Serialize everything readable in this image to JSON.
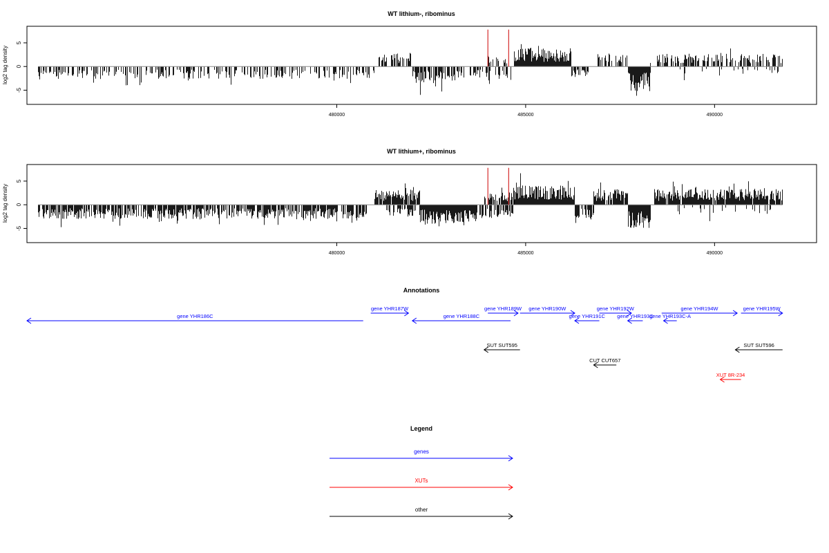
{
  "chart_data": [
    {
      "type": "bar",
      "title": "WT lithium-, ribominus",
      "ylabel": "log2 tag density",
      "xlim": [
        471800,
        492700
      ],
      "ylim": [
        -8,
        8.5
      ],
      "xticks": [
        480000,
        485000,
        490000
      ],
      "yticks": [
        -5,
        0,
        5
      ],
      "grid": false,
      "baseline": {
        "x_start": 472100,
        "x_end": 491800,
        "y": 0
      },
      "marker_lines": {
        "color": "#cc0000",
        "x": [
          484000,
          484550
        ],
        "y_top": 7.8
      },
      "density_segments": [
        {
          "x0": 472100,
          "x1": 481000,
          "sign": -1,
          "amp": 2.6,
          "density": 0.45,
          "seed": 11
        },
        {
          "x0": 481100,
          "x1": 482000,
          "sign": 1,
          "amp": 2.9,
          "density": 0.6,
          "seed": 12
        },
        {
          "x0": 482000,
          "x1": 483100,
          "sign": -1,
          "amp": 3.5,
          "density": 0.85,
          "seed": 13
        },
        {
          "x0": 483100,
          "x1": 484600,
          "sign": -1,
          "amp": 2.6,
          "density": 0.45,
          "seed": 14
        },
        {
          "x0": 484000,
          "x1": 484500,
          "sign": 1,
          "amp": 2.3,
          "density": 0.4,
          "seed": 15
        },
        {
          "x0": 484700,
          "x1": 486200,
          "sign": 1,
          "amp": 4.0,
          "density": 1.0,
          "seed": 16
        },
        {
          "x0": 486200,
          "x1": 486650,
          "sign": -1,
          "amp": 2.4,
          "density": 0.6,
          "seed": 17
        },
        {
          "x0": 486900,
          "x1": 487700,
          "sign": 1,
          "amp": 2.8,
          "density": 0.6,
          "seed": 18
        },
        {
          "x0": 487700,
          "x1": 488300,
          "sign": -1,
          "amp": 5.2,
          "density": 1.0,
          "seed": 19
        },
        {
          "x0": 488300,
          "x1": 488500,
          "sign": 1,
          "amp": 2.4,
          "density": 0.4,
          "seed": 20
        },
        {
          "x0": 488500,
          "x1": 491800,
          "sign": 1,
          "amp": 2.7,
          "density": 0.55,
          "seed": 21
        },
        {
          "x0": 489000,
          "x1": 491700,
          "sign": -1,
          "amp": 2.0,
          "density": 0.12,
          "seed": 22
        }
      ]
    },
    {
      "type": "bar",
      "title": "WT lithium+, ribominus",
      "ylabel": "log2 tag density",
      "xlim": [
        471800,
        492700
      ],
      "ylim": [
        -8,
        8.5
      ],
      "xticks": [
        480000,
        485000,
        490000
      ],
      "yticks": [
        -5,
        0,
        5
      ],
      "grid": false,
      "baseline": {
        "x_start": 472100,
        "x_end": 491800,
        "y": 0
      },
      "marker_lines": {
        "color": "#cc0000",
        "x": [
          484000,
          484550
        ],
        "y_top": 7.8
      },
      "density_segments": [
        {
          "x0": 472100,
          "x1": 480800,
          "sign": -1,
          "amp": 3.0,
          "density": 0.75,
          "seed": 31
        },
        {
          "x0": 481000,
          "x1": 482200,
          "sign": 1,
          "amp": 3.2,
          "density": 0.9,
          "seed": 32
        },
        {
          "x0": 481300,
          "x1": 482200,
          "sign": -1,
          "amp": 2.5,
          "density": 0.5,
          "seed": 33
        },
        {
          "x0": 482200,
          "x1": 483700,
          "sign": -1,
          "amp": 4.0,
          "density": 1.0,
          "seed": 34
        },
        {
          "x0": 483700,
          "x1": 484700,
          "sign": -1,
          "amp": 2.8,
          "density": 0.7,
          "seed": 35
        },
        {
          "x0": 483900,
          "x1": 484700,
          "sign": 1,
          "amp": 2.6,
          "density": 0.6,
          "seed": 36
        },
        {
          "x0": 484700,
          "x1": 486300,
          "sign": 1,
          "amp": 4.1,
          "density": 1.0,
          "seed": 37
        },
        {
          "x0": 486300,
          "x1": 486800,
          "sign": -1,
          "amp": 3.0,
          "density": 0.75,
          "seed": 38
        },
        {
          "x0": 486800,
          "x1": 487700,
          "sign": 1,
          "amp": 3.3,
          "density": 0.9,
          "seed": 39
        },
        {
          "x0": 487700,
          "x1": 488300,
          "sign": -1,
          "amp": 5.0,
          "density": 1.0,
          "seed": 40
        },
        {
          "x0": 488400,
          "x1": 491800,
          "sign": 1,
          "amp": 3.3,
          "density": 0.95,
          "seed": 41
        },
        {
          "x0": 489000,
          "x1": 491700,
          "sign": -1,
          "amp": 2.0,
          "density": 0.15,
          "seed": 42
        }
      ]
    },
    {
      "type": "diagram",
      "title": "Annotations",
      "xlim": [
        471800,
        492700
      ],
      "features": [
        {
          "label": "gene YHR186C",
          "category": "gene",
          "start": 471800,
          "end": 480700,
          "strand": "-",
          "row": 1
        },
        {
          "label": "gene YHR187W",
          "category": "gene",
          "start": 480900,
          "end": 481900,
          "strand": "+",
          "row": 0
        },
        {
          "label": "gene YHR188C",
          "category": "gene",
          "start": 482000,
          "end": 484600,
          "strand": "-",
          "row": 1
        },
        {
          "label": "gene YHR189W",
          "category": "gene",
          "start": 484000,
          "end": 484800,
          "strand": "+",
          "row": 0
        },
        {
          "label": "gene YHR190W",
          "category": "gene",
          "start": 484850,
          "end": 486300,
          "strand": "+",
          "row": 0
        },
        {
          "label": "gene YHR191C",
          "category": "gene",
          "start": 486300,
          "end": 486950,
          "strand": "-",
          "row": 1
        },
        {
          "label": "gene YHR192W",
          "category": "gene",
          "start": 486950,
          "end": 487800,
          "strand": "+",
          "row": 0
        },
        {
          "label": "gene YHR193C",
          "category": "gene",
          "start": 487700,
          "end": 488100,
          "strand": "-",
          "row": 1
        },
        {
          "label": "gene YHR193C-A",
          "category": "gene",
          "start": 488650,
          "end": 489000,
          "strand": "-",
          "row": 1
        },
        {
          "label": "gene YHR194W",
          "category": "gene",
          "start": 488600,
          "end": 490600,
          "strand": "+",
          "row": 0
        },
        {
          "label": "gene YHR195W",
          "category": "gene",
          "start": 490700,
          "end": 491800,
          "strand": "+",
          "row": 0
        },
        {
          "label": "SUT SUT595",
          "category": "other",
          "start": 483900,
          "end": 484850,
          "strand": "-",
          "row": 2
        },
        {
          "label": "SUT SUT596",
          "category": "other",
          "start": 490550,
          "end": 491800,
          "strand": "-",
          "row": 2
        },
        {
          "label": "CUT CUT657",
          "category": "other",
          "start": 486800,
          "end": 487400,
          "strand": "-",
          "row": 3
        },
        {
          "label": "XUT 8R-234",
          "category": "XUT",
          "start": 490150,
          "end": 490700,
          "strand": "-",
          "row": 4
        }
      ]
    }
  ],
  "legend": {
    "title": "Legend",
    "items": [
      {
        "label": "genes",
        "color": "#0000ff"
      },
      {
        "label": "XUTs",
        "color": "#ff0000"
      },
      {
        "label": "other",
        "color": "#000000"
      }
    ]
  },
  "colors": {
    "gene": "#0000ff",
    "XUT": "#ff0000",
    "other": "#000000",
    "marker": "#cc0000"
  }
}
